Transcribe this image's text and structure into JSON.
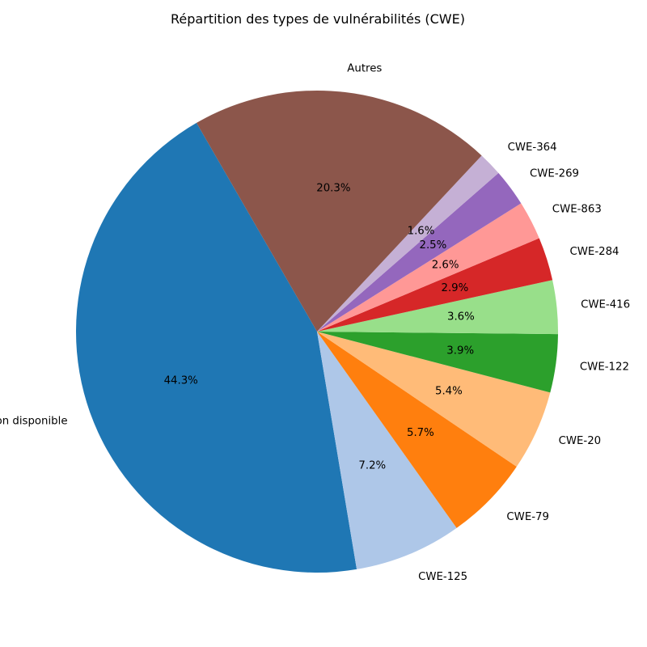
{
  "chart_data": {
    "type": "pie",
    "title": "Répartition des types de vulnérabilités (CWE)",
    "slices": [
      {
        "label": "Non disponible",
        "value": 44.3,
        "pct_label": "44.3%",
        "color": "#1f77b4"
      },
      {
        "label": "CWE-125",
        "value": 7.2,
        "pct_label": "7.2%",
        "color": "#aec7e8"
      },
      {
        "label": "CWE-79",
        "value": 5.7,
        "pct_label": "5.7%",
        "color": "#ff7f0e"
      },
      {
        "label": "CWE-20",
        "value": 5.4,
        "pct_label": "5.4%",
        "color": "#ffbb78"
      },
      {
        "label": "CWE-122",
        "value": 3.9,
        "pct_label": "3.9%",
        "color": "#2ca02c"
      },
      {
        "label": "CWE-416",
        "value": 3.6,
        "pct_label": "3.6%",
        "color": "#98df8a"
      },
      {
        "label": "CWE-284",
        "value": 2.9,
        "pct_label": "2.9%",
        "color": "#d62728"
      },
      {
        "label": "CWE-863",
        "value": 2.6,
        "pct_label": "2.6%",
        "color": "#ff9896"
      },
      {
        "label": "CWE-269",
        "value": 2.5,
        "pct_label": "2.5%",
        "color": "#9467bd"
      },
      {
        "label": "CWE-364",
        "value": 1.6,
        "pct_label": "1.6%",
        "color": "#c5b0d5"
      },
      {
        "label": "Autres",
        "value": 20.3,
        "pct_label": "20.3%",
        "color": "#8c564b"
      }
    ],
    "start_angle_deg": 120,
    "direction": "counterclockwise"
  }
}
